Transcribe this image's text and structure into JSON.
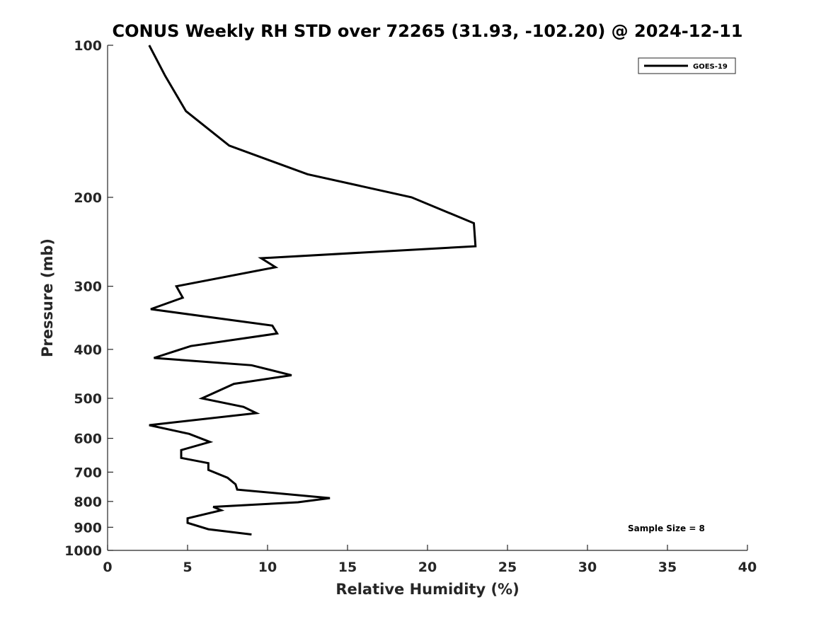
{
  "chart_data": {
    "type": "line",
    "title": "CONUS Weekly RH STD over 72265 (31.93, -102.20) @ 2024-12-11",
    "xlabel": "Relative Humidity (%)",
    "ylabel": "Pressure (mb)",
    "xlim": [
      0,
      40
    ],
    "ylim": [
      100,
      1000
    ],
    "y_scale": "log",
    "y_reversed": true,
    "x_ticks": [
      "0",
      "5",
      "10",
      "15",
      "20",
      "25",
      "30",
      "35",
      "40"
    ],
    "y_ticks": [
      "100",
      "200",
      "300",
      "400",
      "500",
      "600",
      "700",
      "800",
      "900",
      "1000"
    ],
    "grid": false,
    "legend_position": "top-right",
    "annotation": "Sample Size = 8",
    "series": [
      {
        "name": "GOES-19",
        "color": "#000000",
        "points": [
          [
            2.6,
            100
          ],
          [
            3.6,
            115
          ],
          [
            4.9,
            135
          ],
          [
            7.6,
            158
          ],
          [
            12.5,
            180
          ],
          [
            19.0,
            200
          ],
          [
            22.9,
            225
          ],
          [
            23.0,
            250
          ],
          [
            9.6,
            264
          ],
          [
            10.5,
            275
          ],
          [
            4.3,
            300
          ],
          [
            4.7,
            316
          ],
          [
            2.7,
            333
          ],
          [
            10.3,
            359
          ],
          [
            10.6,
            372
          ],
          [
            5.2,
            394
          ],
          [
            2.9,
            416
          ],
          [
            9.0,
            430
          ],
          [
            11.5,
            450
          ],
          [
            7.9,
            468
          ],
          [
            5.9,
            500
          ],
          [
            8.5,
            520
          ],
          [
            9.3,
            535
          ],
          [
            2.6,
            565
          ],
          [
            5.1,
            588
          ],
          [
            6.4,
            610
          ],
          [
            4.6,
            633
          ],
          [
            4.6,
            656
          ],
          [
            6.3,
            672
          ],
          [
            6.3,
            693
          ],
          [
            7.5,
            718
          ],
          [
            8.0,
            740
          ],
          [
            8.1,
            758
          ],
          [
            13.9,
            788
          ],
          [
            11.9,
            803
          ],
          [
            6.6,
            820
          ],
          [
            7.1,
            833
          ],
          [
            5.0,
            864
          ],
          [
            5.0,
            882
          ],
          [
            6.3,
            908
          ],
          [
            9.0,
            930
          ]
        ]
      }
    ]
  }
}
